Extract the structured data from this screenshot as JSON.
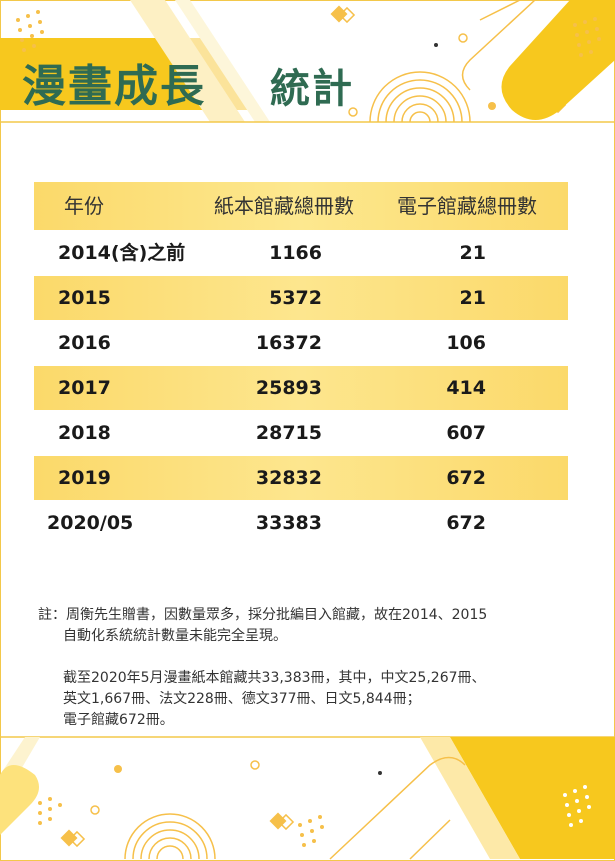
{
  "title": {
    "main": "漫畫成長",
    "sub": "統計"
  },
  "table": {
    "headers": [
      "年份",
      "紙本館藏總冊數",
      "電子館藏總冊數"
    ],
    "rows": [
      {
        "year": "2014(含)之前",
        "print": "1166",
        "ebook": "21"
      },
      {
        "year": "2015",
        "print": "5372",
        "ebook": "21"
      },
      {
        "year": "2016",
        "print": "16372",
        "ebook": "106"
      },
      {
        "year": "2017",
        "print": "25893",
        "ebook": "414"
      },
      {
        "year": "2018",
        "print": "28715",
        "ebook": "607"
      },
      {
        "year": "2019",
        "print": "32832",
        "ebook": "672"
      },
      {
        "year": "2020/05",
        "print": "33383",
        "ebook": "672"
      }
    ]
  },
  "notes": {
    "line1": "註：周衡先生贈書，因數量眾多，採分批編目入館藏，故在2014、2015",
    "line2": "自動化系統統計數量未能完全呈現。",
    "line3": "截至2020年5月漫畫紙本館藏共33,383冊，其中，中文25,267冊、",
    "line4": "英文1,667冊、法文228冊、德文377冊、日文5,844冊；",
    "line5": "電子館藏672冊。"
  },
  "colors": {
    "accent_yellow": "#f5c518",
    "band_yellow": "#fde68e",
    "title_green": "#2f6b52"
  }
}
